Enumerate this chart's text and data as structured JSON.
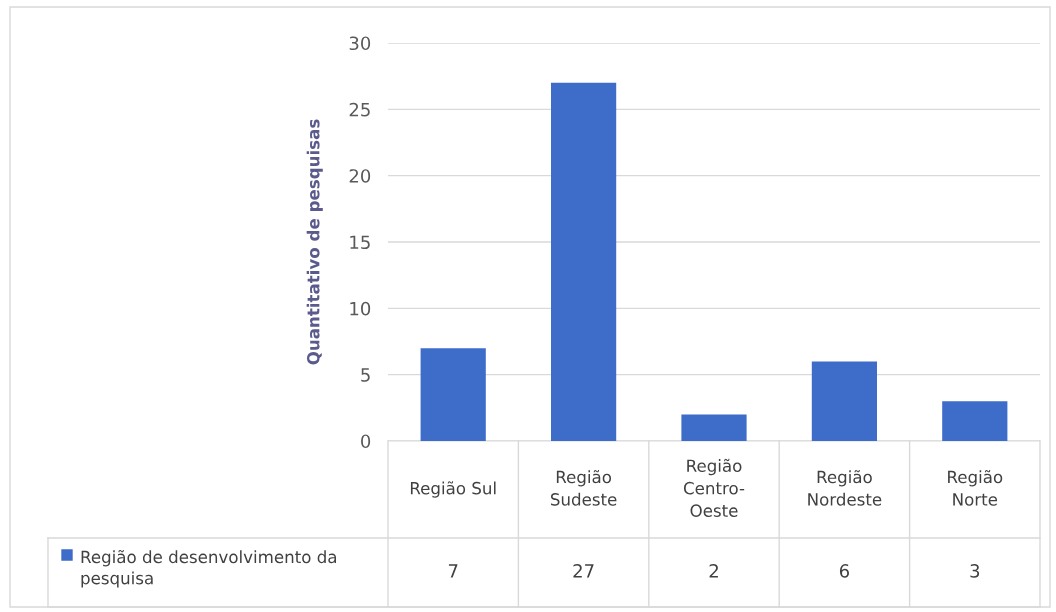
{
  "chart_data": {
    "type": "bar",
    "ylabel": "Quantitativo de pesquisas",
    "categories": [
      "Região Sul",
      "Região Sudeste",
      "Região Centro-Oeste",
      "Região Nordeste",
      "Região Norte"
    ],
    "series": [
      {
        "name": "Região de desenvolvimento da pesquisa",
        "color": "#3d6cc9",
        "values": [
          7,
          27,
          2,
          6,
          3
        ]
      }
    ],
    "ylim": [
      0,
      30
    ],
    "yticks": [
      0,
      5,
      10,
      15,
      20,
      25,
      30
    ],
    "grid": "y",
    "data_labels": true,
    "legend": "bottom left"
  }
}
